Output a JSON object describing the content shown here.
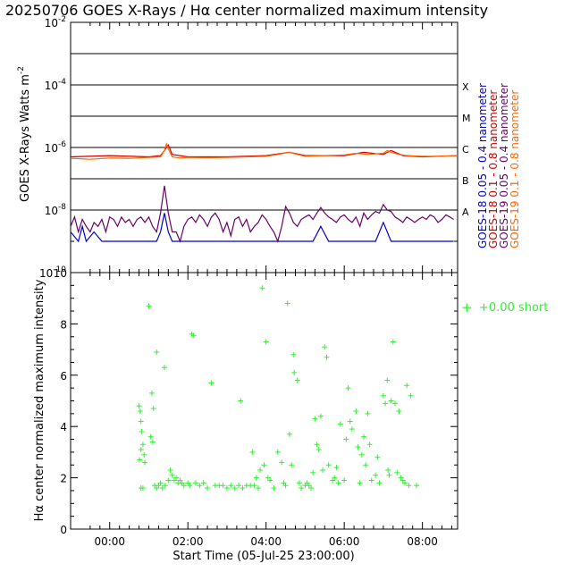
{
  "title": "20250706 GOES X-Rays / Hα center normalized maximum intensity",
  "chart_data": [
    {
      "type": "line",
      "ylabel_text": "GOES X-Rays Watts m",
      "ylabel_sup": "-2",
      "yscale": "log",
      "ylim": [
        1e-10,
        0.01
      ],
      "y_ticks": [
        {
          "value": 0.01,
          "base": "10",
          "exp": "-2"
        },
        {
          "value": 0.0001,
          "base": "10",
          "exp": "-4"
        },
        {
          "value": 1e-06,
          "base": "10",
          "exp": "-6"
        },
        {
          "value": 1e-08,
          "base": "10",
          "exp": "-8"
        },
        {
          "value": 1e-10,
          "base": "10",
          "exp": "-10"
        }
      ],
      "flare_levels": [
        0.001,
        0.0001,
        1e-05,
        1e-06,
        1e-07,
        1e-08
      ],
      "flare_classes": [
        {
          "label": "X",
          "value": 0.0001
        },
        {
          "label": "M",
          "value": 1e-05
        },
        {
          "label": "C",
          "value": 1e-06
        },
        {
          "label": "B",
          "value": 1e-07
        },
        {
          "label": "A",
          "value": 1e-08
        }
      ],
      "xlim_hours": [
        -1.0,
        8.9
      ],
      "series": [
        {
          "name": "GOES-18 0.05 - 0.4 nanometer",
          "color": "#0000cc",
          "x": [
            -1.0,
            -0.8,
            -0.7,
            -0.6,
            -0.4,
            -0.2,
            0.0,
            0.2,
            0.4,
            0.6,
            0.8,
            1.0,
            1.2,
            1.3,
            1.4,
            1.5,
            1.6,
            1.8,
            2.0,
            2.2,
            2.4,
            2.6,
            2.8,
            3.0,
            3.2,
            3.4,
            3.6,
            3.8,
            4.0,
            4.2,
            4.4,
            4.6,
            4.8,
            5.0,
            5.2,
            5.4,
            5.6,
            5.8,
            6.0,
            6.2,
            6.4,
            6.6,
            6.8,
            7.0,
            7.2,
            7.4,
            7.6,
            7.8,
            8.0,
            8.2,
            8.4,
            8.6,
            8.8
          ],
          "y": [
            2e-09,
            1e-09,
            3e-09,
            1e-09,
            2e-09,
            1e-09,
            1e-09,
            1e-09,
            1e-09,
            1e-09,
            1e-09,
            1e-09,
            1e-09,
            2e-09,
            8e-09,
            2e-09,
            1e-09,
            1e-09,
            1e-09,
            1e-09,
            1e-09,
            1e-09,
            1e-09,
            1e-09,
            1e-09,
            1e-09,
            1e-09,
            1e-09,
            1e-09,
            1e-09,
            1e-09,
            1e-09,
            1e-09,
            1e-09,
            1e-09,
            3e-09,
            1e-09,
            1e-09,
            1e-09,
            1e-09,
            1e-09,
            1e-09,
            1e-09,
            4e-09,
            1e-09,
            1e-09,
            1e-09,
            1e-09,
            1e-09,
            1e-09,
            1e-09,
            1e-09,
            1e-09
          ]
        },
        {
          "name": "GOES-18 0.1 - 0.8 nanometer",
          "color": "#cc0000",
          "x": [
            -1.0,
            0.0,
            1.0,
            1.3,
            1.4,
            1.5,
            1.6,
            2.0,
            3.0,
            4.0,
            4.6,
            5.0,
            6.0,
            6.5,
            7.0,
            7.2,
            7.5,
            8.0,
            8.9
          ],
          "y": [
            5e-07,
            5.5e-07,
            5e-07,
            5.5e-07,
            8e-07,
            1.2e-06,
            6e-07,
            5e-07,
            5e-07,
            5.5e-07,
            7e-07,
            5.5e-07,
            5.5e-07,
            7e-07,
            6e-07,
            8e-07,
            5.5e-07,
            5e-07,
            5.5e-07
          ]
        },
        {
          "name": "GOES-19 0.05 - 0.4 nanometer",
          "color": "#660066",
          "x": [
            -1.0,
            -0.9,
            -0.8,
            -0.7,
            -0.6,
            -0.5,
            -0.4,
            -0.3,
            -0.2,
            -0.1,
            0.0,
            0.1,
            0.2,
            0.3,
            0.4,
            0.5,
            0.6,
            0.7,
            0.8,
            0.9,
            1.0,
            1.1,
            1.2,
            1.3,
            1.4,
            1.5,
            1.6,
            1.7,
            1.8,
            1.9,
            2.0,
            2.1,
            2.2,
            2.3,
            2.4,
            2.5,
            2.6,
            2.7,
            2.8,
            2.9,
            3.0,
            3.1,
            3.2,
            3.3,
            3.4,
            3.5,
            3.6,
            3.7,
            3.8,
            3.9,
            4.0,
            4.1,
            4.2,
            4.3,
            4.4,
            4.5,
            4.6,
            4.7,
            4.8,
            4.9,
            5.0,
            5.1,
            5.2,
            5.3,
            5.4,
            5.5,
            5.6,
            5.7,
            5.8,
            5.9,
            6.0,
            6.1,
            6.2,
            6.3,
            6.4,
            6.5,
            6.6,
            6.7,
            6.8,
            6.9,
            7.0,
            7.1,
            7.2,
            7.3,
            7.4,
            7.5,
            7.6,
            7.7,
            7.8,
            7.9,
            8.0,
            8.1,
            8.2,
            8.3,
            8.4,
            8.5,
            8.6,
            8.7,
            8.8
          ],
          "y": [
            3e-09,
            6e-09,
            2e-09,
            5e-09,
            3e-09,
            2e-09,
            4e-09,
            3e-09,
            5e-09,
            2e-09,
            6e-09,
            5e-09,
            3e-09,
            6e-09,
            4e-09,
            5e-09,
            3e-09,
            5e-09,
            6e-09,
            4e-09,
            6e-09,
            3e-09,
            2e-09,
            8e-09,
            6e-08,
            8e-09,
            2e-09,
            2e-09,
            1e-09,
            3e-09,
            5e-09,
            6e-09,
            4e-09,
            7e-09,
            5e-09,
            3e-09,
            6e-09,
            8e-09,
            5e-09,
            2e-09,
            4e-09,
            1.5e-09,
            5e-09,
            6e-09,
            3e-09,
            5e-09,
            2e-09,
            3e-09,
            4e-09,
            7e-09,
            5e-09,
            3e-09,
            2e-09,
            1e-09,
            3e-09,
            1.3e-08,
            8e-09,
            4e-09,
            3e-09,
            5e-09,
            6e-09,
            7e-09,
            5e-09,
            8e-09,
            1.2e-08,
            8e-09,
            6e-09,
            5e-09,
            4e-09,
            6e-09,
            7e-09,
            5e-09,
            4e-09,
            6e-09,
            3e-09,
            8e-09,
            5e-09,
            7e-09,
            9e-09,
            8e-09,
            1.5e-08,
            1e-08,
            9e-09,
            6e-09,
            5e-09,
            4e-09,
            6e-09,
            5e-09,
            4e-09,
            5e-09,
            6e-09,
            5e-09,
            7e-09,
            6e-09,
            4e-09,
            5e-09,
            7e-09,
            6e-09,
            5e-09
          ]
        },
        {
          "name": "GOES-19 0.1 - 0.8 nanometer",
          "color": "#ff6600",
          "x": [
            -1.0,
            -0.5,
            0.0,
            0.5,
            1.0,
            1.3,
            1.4,
            1.45,
            1.5,
            1.6,
            1.8,
            2.0,
            2.5,
            3.0,
            3.5,
            4.0,
            4.3,
            4.6,
            4.8,
            5.0,
            5.5,
            6.0,
            6.3,
            6.6,
            7.0,
            7.1,
            7.2,
            7.4,
            7.6,
            8.0,
            8.5,
            8.9
          ],
          "y": [
            4.5e-07,
            4.2e-07,
            4.6e-07,
            4.5e-07,
            4.8e-07,
            5e-07,
            8e-07,
            1.3e-06,
            9e-07,
            5e-07,
            4.6e-07,
            4.8e-07,
            4.7e-07,
            4.8e-07,
            5e-07,
            5.2e-07,
            6e-07,
            7e-07,
            6e-07,
            5.2e-07,
            5.5e-07,
            5.8e-07,
            6.5e-07,
            6e-07,
            6.5e-07,
            8e-07,
            7e-07,
            6e-07,
            5.5e-07,
            5.2e-07,
            5.3e-07,
            5.5e-07
          ]
        }
      ],
      "legend": [
        {
          "sat": "GOES-18",
          "band": "0.05 - 0.4 nanometer",
          "color": "#0000cc"
        },
        {
          "sat": "GOES-18",
          "band": "0.1 - 0.8 nanometer",
          "color": "#cc0000"
        },
        {
          "sat": "GOES-19",
          "band": "0.05 - 0.4 nanometer",
          "color": "#660066"
        },
        {
          "sat": "GOES-19",
          "band": "0.1 - 0.8 nanometer",
          "color": "#ff6600"
        }
      ],
      "legend_placement": "right, rotated"
    },
    {
      "type": "scatter",
      "ylabel": "Hα center normalized maximum intensity",
      "xlabel": "Start Time (05-Jul-25 23:00:00)",
      "ylim": [
        0,
        10
      ],
      "y_ticks": [
        "0",
        "2",
        "4",
        "6",
        "8",
        "10"
      ],
      "xlim_hours": [
        -1.0,
        8.9
      ],
      "x_ticks": [
        {
          "hour": 0,
          "label": "00:00"
        },
        {
          "hour": 2,
          "label": "02:00"
        },
        {
          "hour": 4,
          "label": "04:00"
        },
        {
          "hour": 6,
          "label": "06:00"
        },
        {
          "hour": 8,
          "label": "08:00"
        }
      ],
      "marker_color": "#33ee33",
      "legend": {
        "marker": "+",
        "label": "+0.00 short"
      },
      "legend_placement": "right",
      "points": [
        [
          0.75,
          4.8
        ],
        [
          0.78,
          4.6
        ],
        [
          0.8,
          4.2
        ],
        [
          0.82,
          3.8
        ],
        [
          0.85,
          3.3
        ],
        [
          0.88,
          2.9
        ],
        [
          0.9,
          2.6
        ],
        [
          0.8,
          3.1
        ],
        [
          0.76,
          2.7
        ],
        [
          0.85,
          1.6
        ],
        [
          0.8,
          1.6
        ],
        [
          1.0,
          8.7
        ],
        [
          1.05,
          3.6
        ],
        [
          1.1,
          3.4
        ],
        [
          1.08,
          5.3
        ],
        [
          1.12,
          4.7
        ],
        [
          1.2,
          6.9
        ],
        [
          1.15,
          1.7
        ],
        [
          1.2,
          1.6
        ],
        [
          1.25,
          1.7
        ],
        [
          1.3,
          1.8
        ],
        [
          1.35,
          1.6
        ],
        [
          1.4,
          6.3
        ],
        [
          1.42,
          1.7
        ],
        [
          1.5,
          1.9
        ],
        [
          1.55,
          2.3
        ],
        [
          1.6,
          2.1
        ],
        [
          1.65,
          1.9
        ],
        [
          1.7,
          2.0
        ],
        [
          1.75,
          1.8
        ],
        [
          1.8,
          1.9
        ],
        [
          1.85,
          1.8
        ],
        [
          1.9,
          1.7
        ],
        [
          2.0,
          1.8
        ],
        [
          2.05,
          1.7
        ],
        [
          2.1,
          7.6
        ],
        [
          2.15,
          7.55
        ],
        [
          2.2,
          1.8
        ],
        [
          2.3,
          1.7
        ],
        [
          2.4,
          1.8
        ],
        [
          2.5,
          1.6
        ],
        [
          2.6,
          5.7
        ],
        [
          2.7,
          1.7
        ],
        [
          2.8,
          1.7
        ],
        [
          2.9,
          1.7
        ],
        [
          3.0,
          1.6
        ],
        [
          3.1,
          1.7
        ],
        [
          3.2,
          1.6
        ],
        [
          3.3,
          1.7
        ],
        [
          3.35,
          5.0
        ],
        [
          3.4,
          1.6
        ],
        [
          3.5,
          1.7
        ],
        [
          3.6,
          1.7
        ],
        [
          3.65,
          3.0
        ],
        [
          3.7,
          1.7
        ],
        [
          3.75,
          2.0
        ],
        [
          3.8,
          1.6
        ],
        [
          3.85,
          2.3
        ],
        [
          3.9,
          9.4
        ],
        [
          3.95,
          2.5
        ],
        [
          4.0,
          7.3
        ],
        [
          4.05,
          2.0
        ],
        [
          4.1,
          1.9
        ],
        [
          4.2,
          1.6
        ],
        [
          4.3,
          3.0
        ],
        [
          4.4,
          2.6
        ],
        [
          4.45,
          1.8
        ],
        [
          4.5,
          1.7
        ],
        [
          4.55,
          8.8
        ],
        [
          4.6,
          3.7
        ],
        [
          4.65,
          2.5
        ],
        [
          4.7,
          6.8
        ],
        [
          4.72,
          6.1
        ],
        [
          4.8,
          5.8
        ],
        [
          4.85,
          1.8
        ],
        [
          4.9,
          1.6
        ],
        [
          5.0,
          1.7
        ],
        [
          5.05,
          1.8
        ],
        [
          5.1,
          1.7
        ],
        [
          5.15,
          1.6
        ],
        [
          5.2,
          2.2
        ],
        [
          5.25,
          4.3
        ],
        [
          5.3,
          3.3
        ],
        [
          5.35,
          3.1
        ],
        [
          5.4,
          4.4
        ],
        [
          5.45,
          2.3
        ],
        [
          5.5,
          7.1
        ],
        [
          5.55,
          6.7
        ],
        [
          5.6,
          2.5
        ],
        [
          5.7,
          1.9
        ],
        [
          5.75,
          2.0
        ],
        [
          5.8,
          2.4
        ],
        [
          5.85,
          1.8
        ],
        [
          5.9,
          4.1
        ],
        [
          6.0,
          1.9
        ],
        [
          6.05,
          3.5
        ],
        [
          6.1,
          5.5
        ],
        [
          6.15,
          4.2
        ],
        [
          6.2,
          3.9
        ],
        [
          6.3,
          4.6
        ],
        [
          6.35,
          3.2
        ],
        [
          6.4,
          1.8
        ],
        [
          6.45,
          2.9
        ],
        [
          6.5,
          3.6
        ],
        [
          6.55,
          2.5
        ],
        [
          6.6,
          4.5
        ],
        [
          6.65,
          3.3
        ],
        [
          6.7,
          1.9
        ],
        [
          6.8,
          2.1
        ],
        [
          6.85,
          2.8
        ],
        [
          6.9,
          1.8
        ],
        [
          7.0,
          5.2
        ],
        [
          7.05,
          4.9
        ],
        [
          7.1,
          5.8
        ],
        [
          7.12,
          2.3
        ],
        [
          7.15,
          2.1
        ],
        [
          7.2,
          5.0
        ],
        [
          7.25,
          7.3
        ],
        [
          7.3,
          4.9
        ],
        [
          7.35,
          2.2
        ],
        [
          7.4,
          4.6
        ],
        [
          7.45,
          2.0
        ],
        [
          7.5,
          1.9
        ],
        [
          7.55,
          1.8
        ],
        [
          7.6,
          5.6
        ],
        [
          7.65,
          1.7
        ],
        [
          7.7,
          5.2
        ],
        [
          7.85,
          1.7
        ]
      ]
    }
  ]
}
